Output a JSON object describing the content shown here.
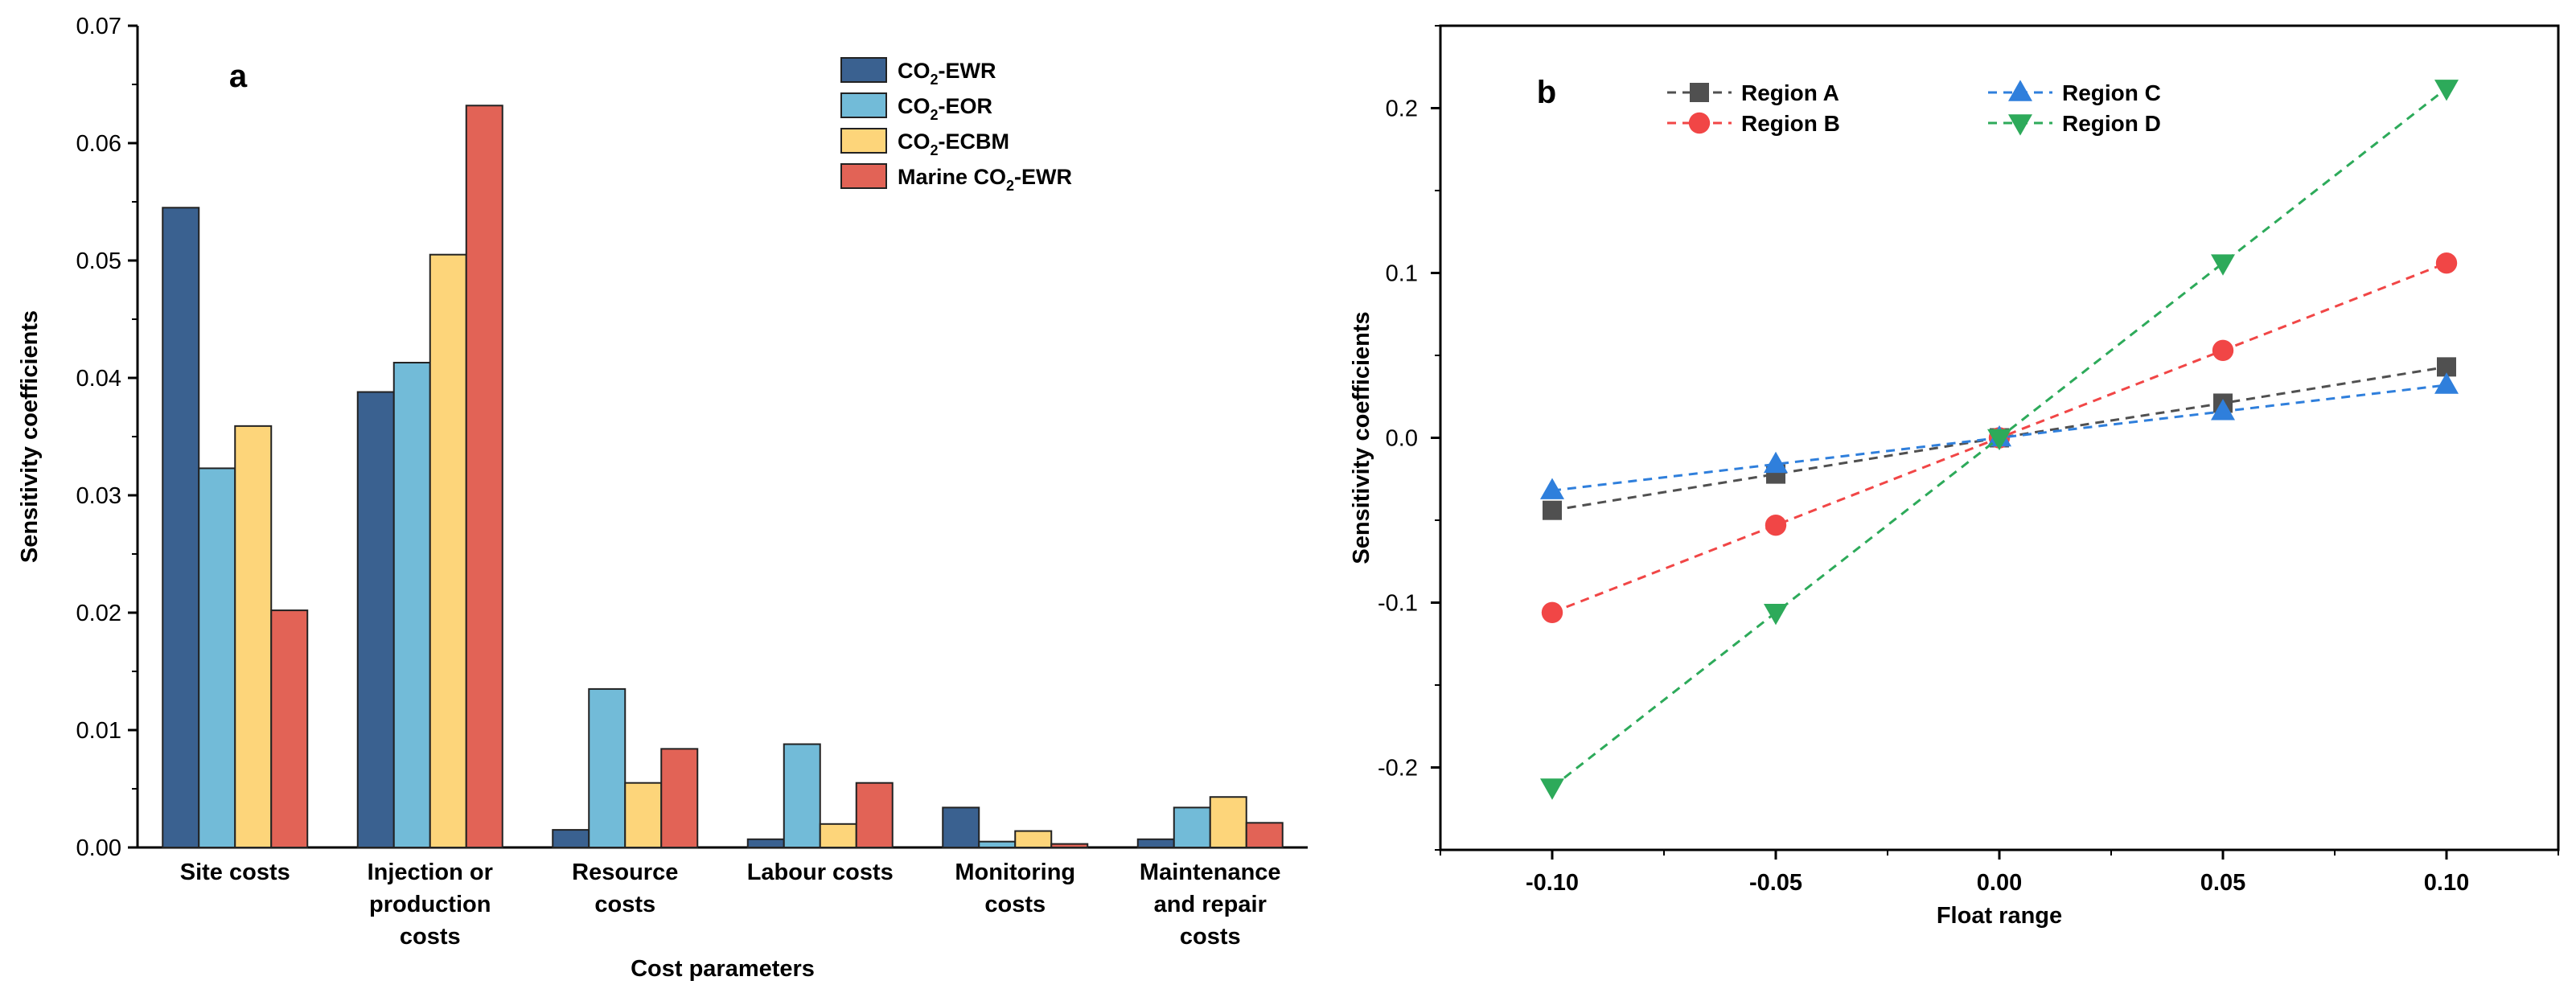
{
  "chart_data": [
    {
      "type": "bar",
      "panel_label": "a",
      "xlabel": "Cost parameters",
      "ylabel": "Sensitivity coefficients",
      "ylim": [
        0,
        0.07
      ],
      "yticks": [
        "0.00",
        "0.01",
        "0.02",
        "0.03",
        "0.04",
        "0.05",
        "0.06",
        "0.07"
      ],
      "categories": [
        [
          "Site costs"
        ],
        [
          "Injection or",
          "production",
          "costs"
        ],
        [
          "Resource",
          "costs"
        ],
        [
          "Labour costs"
        ],
        [
          "Monitoring",
          "costs"
        ],
        [
          "Maintenance",
          "and repair",
          "costs"
        ]
      ],
      "legend_position": "top-right",
      "series": [
        {
          "name": "CO2-EWR",
          "legend": {
            "pre": "CO",
            "sub": "2",
            "post": "-EWR"
          },
          "color": "#3A6190",
          "values": [
            0.0545,
            0.0388,
            0.0015,
            0.0007,
            0.0034,
            0.0007
          ]
        },
        {
          "name": "CO2-EOR",
          "legend": {
            "pre": "CO",
            "sub": "2",
            "post": "-EOR"
          },
          "color": "#72BBD8",
          "values": [
            0.0323,
            0.0413,
            0.0135,
            0.0088,
            0.0005,
            0.0034
          ]
        },
        {
          "name": "CO2-ECBM",
          "legend": {
            "pre": "CO",
            "sub": "2",
            "post": "-ECBM"
          },
          "color": "#FDD57A",
          "values": [
            0.0359,
            0.0505,
            0.0055,
            0.002,
            0.0014,
            0.0043
          ]
        },
        {
          "name": "Marine CO2-EWR",
          "legend": {
            "pre": "Marine CO",
            "sub": "2",
            "post": "-EWR"
          },
          "color": "#E26356",
          "values": [
            0.0202,
            0.0632,
            0.0084,
            0.0055,
            0.0003,
            0.0021
          ]
        }
      ]
    },
    {
      "type": "line",
      "panel_label": "b",
      "xlabel": "Float range",
      "ylabel": "Sensitivity coefficients",
      "xlim": [
        -0.125,
        0.125
      ],
      "ylim": [
        -0.25,
        0.25
      ],
      "xticks": [
        -0.1,
        -0.05,
        0.0,
        0.05,
        0.1
      ],
      "xtick_labels": [
        "-0.10",
        "-0.05",
        "0.00",
        "0.05",
        "0.10"
      ],
      "yticks": [
        -0.2,
        -0.1,
        0.0,
        0.1,
        0.2
      ],
      "ytick_labels": [
        "-0.2",
        "-0.1",
        "0.0",
        "0.1",
        "0.2"
      ],
      "x": [
        -0.1,
        -0.05,
        0.0,
        0.05,
        0.1
      ],
      "legend_position": "top-left",
      "series": [
        {
          "name": "Region A",
          "color": "#505050",
          "marker": "square",
          "values": [
            -0.044,
            -0.022,
            0.0,
            0.021,
            0.043
          ]
        },
        {
          "name": "Region B",
          "color": "#F14646",
          "marker": "circle",
          "values": [
            -0.106,
            -0.053,
            0.0,
            0.053,
            0.106
          ]
        },
        {
          "name": "Region C",
          "color": "#2F7FDC",
          "marker": "triangle-up",
          "values": [
            -0.032,
            -0.016,
            0.0,
            0.016,
            0.032
          ]
        },
        {
          "name": "Region D",
          "color": "#2DAA5A",
          "marker": "triangle-down",
          "values": [
            -0.212,
            -0.106,
            0.0,
            0.106,
            0.212
          ]
        }
      ]
    }
  ]
}
